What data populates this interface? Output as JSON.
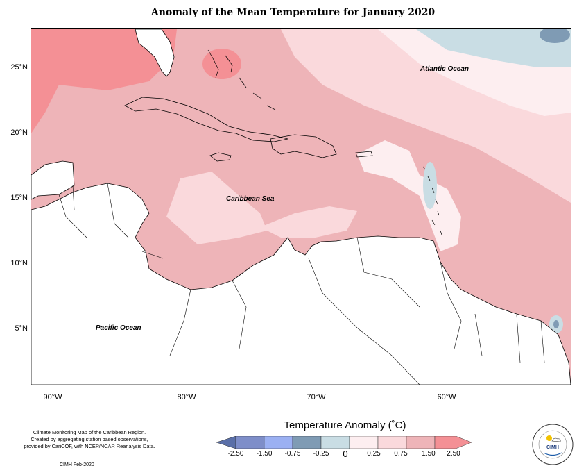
{
  "title": "Anomaly of the Mean Temperature for January 2020",
  "map": {
    "lat_ticks": [
      "25°N",
      "20°N",
      "15°N",
      "10°N",
      "5°N"
    ],
    "lon_ticks": [
      "90°W",
      "80°W",
      "70°W",
      "60°W"
    ],
    "labels": {
      "atlantic": "Atlantic Ocean",
      "caribbean": "Caribbean Sea",
      "pacific": "Pacific Ocean"
    },
    "colors": {
      "land": "#ffffff",
      "base_anomaly": "#eeb4b8",
      "light_anomaly": "#fad9dc",
      "strong_anomaly": "#f49095",
      "faint_anomaly": "#fdeef0",
      "cool_anomaly": "#c9dde4",
      "cooler_anomaly": "#7f9bb4"
    }
  },
  "credit": {
    "line1": "Climate Monitoring Map of the Caribbean Region.",
    "line2": "Created by aggregating station based observations,",
    "line3": "provided by CariCOF, with NCEP/NCAR Reanalysis Data.",
    "date": "CIMH Feb-2020"
  },
  "legend": {
    "title": "Temperature Anomaly (˚C)",
    "labels": [
      "-2.50",
      "-1.50",
      "-0.75",
      "-0.25",
      "0",
      "0.25",
      "0.75",
      "1.50",
      "2.50"
    ],
    "colors": [
      "#5a6fa8",
      "#7e8ec9",
      "#9bb0f2",
      "#7f9bb4",
      "#c9dde4",
      "#fdeef0",
      "#fad9dc",
      "#eeb4b8",
      "#f49095"
    ]
  },
  "logo": {
    "text": "CIMH"
  }
}
